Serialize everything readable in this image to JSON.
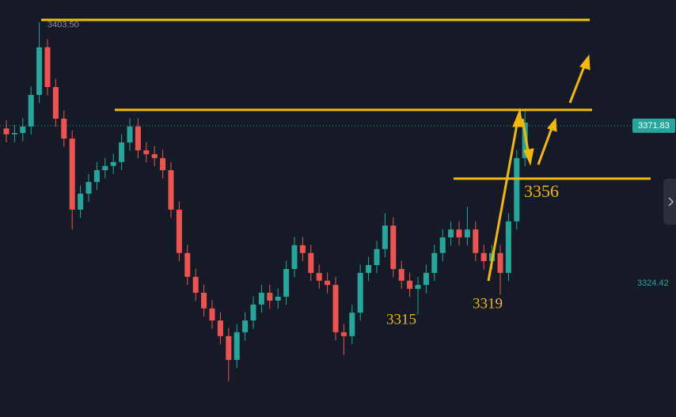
{
  "chart_data": {
    "type": "candlestick",
    "open": [
      3371.0,
      3369.2,
      3369.6,
      3371.6,
      3381.3,
      3395.9,
      3383.7,
      3374.0,
      3367.9,
      3346.1,
      3351.0,
      3354.6,
      3358.2,
      3359.5,
      3360.7,
      3366.7,
      3371.6,
      3364.3,
      3363.1,
      3361.9,
      3358.2,
      3346.1,
      3332.8,
      3325.5,
      3320.6,
      3315.8,
      3312.1,
      3307.3,
      3300.0,
      3308.5,
      3312.1,
      3317.0,
      3320.6,
      3318.2,
      3319.4,
      3327.9,
      3335.2,
      3332.8,
      3326.7,
      3324.3,
      3323.0,
      3308.5,
      3307.3,
      3314.5,
      3326.7,
      3329.1,
      3334.0,
      3341.2,
      3327.9,
      3324.3,
      3321.8,
      3323.0,
      3326.7,
      3332.8,
      3337.6,
      3340.0,
      3337.6,
      3340.0,
      3332.8,
      3330.3,
      3332.8,
      3326.7,
      3342.5,
      3361.9
    ],
    "high": [
      3373.5,
      3372.1,
      3374.1,
      3383.8,
      3403.5,
      3398.4,
      3386.2,
      3376.5,
      3370.4,
      3353.5,
      3357.1,
      3360.7,
      3362.0,
      3363.2,
      3369.2,
      3374.1,
      3374.1,
      3366.8,
      3365.6,
      3364.4,
      3360.7,
      3348.6,
      3335.3,
      3328.0,
      3323.1,
      3318.3,
      3314.6,
      3309.8,
      3311.0,
      3314.6,
      3319.5,
      3323.1,
      3323.1,
      3321.9,
      3330.4,
      3337.7,
      3337.7,
      3335.3,
      3329.2,
      3326.8,
      3325.5,
      3311.0,
      3317.0,
      3329.2,
      3331.6,
      3336.5,
      3345.0,
      3343.7,
      3330.4,
      3326.8,
      3325.5,
      3329.2,
      3335.3,
      3340.1,
      3342.5,
      3342.5,
      3347.0,
      3342.5,
      3335.3,
      3335.3,
      3335.3,
      3345.0,
      3364.4,
      3376.5
    ],
    "low": [
      3366.7,
      3366.7,
      3367.1,
      3369.1,
      3378.8,
      3381.2,
      3371.5,
      3365.4,
      3340.0,
      3343.6,
      3348.5,
      3352.1,
      3355.7,
      3357.0,
      3358.2,
      3364.2,
      3361.8,
      3360.6,
      3359.4,
      3355.7,
      3343.6,
      3330.3,
      3323.0,
      3318.1,
      3313.3,
      3309.6,
      3304.8,
      3293.4,
      3297.5,
      3306.0,
      3309.6,
      3314.5,
      3315.7,
      3315.7,
      3316.9,
      3325.4,
      3330.3,
      3324.2,
      3321.8,
      3320.5,
      3306.0,
      3301.5,
      3304.8,
      3312.0,
      3324.2,
      3326.6,
      3331.5,
      3325.4,
      3321.8,
      3319.3,
      3314.0,
      3320.5,
      3324.2,
      3330.3,
      3335.1,
      3335.1,
      3335.1,
      3330.3,
      3327.8,
      3327.8,
      3320.0,
      3324.2,
      3340.0,
      3359.4
    ],
    "close": [
      3369.2,
      3369.6,
      3371.6,
      3381.3,
      3395.9,
      3383.7,
      3374.0,
      3367.9,
      3346.1,
      3351.0,
      3354.6,
      3358.2,
      3359.5,
      3360.7,
      3366.7,
      3371.6,
      3364.3,
      3363.1,
      3361.9,
      3358.2,
      3346.1,
      3332.8,
      3325.5,
      3320.6,
      3315.8,
      3312.1,
      3307.3,
      3300.0,
      3308.5,
      3312.1,
      3317.0,
      3320.6,
      3318.2,
      3319.4,
      3327.9,
      3335.2,
      3332.8,
      3326.7,
      3324.3,
      3323.0,
      3308.5,
      3307.3,
      3314.5,
      3326.7,
      3329.1,
      3334.0,
      3341.2,
      3327.9,
      3324.3,
      3321.8,
      3323.0,
      3326.7,
      3332.8,
      3337.6,
      3340.0,
      3337.6,
      3340.0,
      3332.8,
      3330.3,
      3332.8,
      3326.7,
      3342.5,
      3361.9,
      3372.8
    ],
    "up_color": "#26a69a",
    "down_color": "#ef5350",
    "ylim": [
      3282.5,
      3410.4
    ],
    "levels": [
      3404.3,
      3376.7,
      3355.6
    ],
    "level_color": "#f5b800",
    "price_labels": [
      {
        "value": 3403.5,
        "label": "3403.50"
      },
      {
        "value": 3371.83,
        "label": "3371.83"
      },
      {
        "value": 3324.42,
        "label": "3324.42"
      }
    ],
    "annotations": [
      "3356",
      "3315",
      "3319"
    ]
  }
}
